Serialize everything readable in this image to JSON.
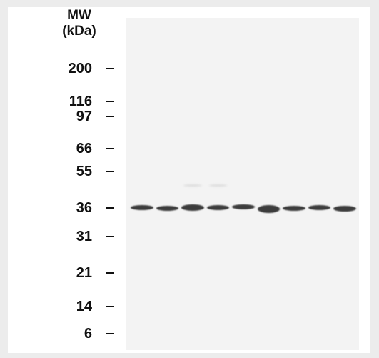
{
  "header": {
    "line1": "MW",
    "line2": "(kDa)"
  },
  "markers": [
    {
      "label": "200"
    },
    {
      "label": "116"
    },
    {
      "label": "97"
    },
    {
      "label": "66"
    },
    {
      "label": "55"
    },
    {
      "label": "36"
    },
    {
      "label": "31"
    },
    {
      "label": "21"
    },
    {
      "label": "14"
    },
    {
      "label": "6"
    }
  ],
  "lanes": 9,
  "colors": {
    "background": "#ececec",
    "panel": "#ffffff",
    "membrane": "#f3f3f3",
    "band": "#3c3c3c"
  }
}
